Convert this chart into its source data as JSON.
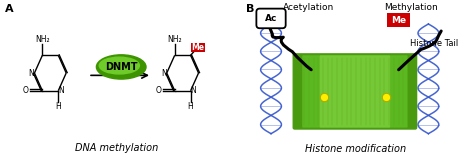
{
  "panel_A_label": "A",
  "panel_B_label": "B",
  "label_DNA_methylation": "DNA methylation",
  "label_Histone_modification": "Histone modification",
  "label_DNMT": "DNMT",
  "label_Me": "Me",
  "label_Ac": "Ac",
  "label_Acetylation": "Acetylation",
  "label_Methylation": "Methylation",
  "label_HistoneTail": "Histone Tail",
  "bg_color": "#ffffff",
  "dnmt_color_outer": "#3d9400",
  "dnmt_color_inner": "#6ecb2a",
  "me_color": "#cc0000",
  "bond_color": "#000000",
  "dna_color": "#3355cc",
  "histone_dark": "#4a9a10",
  "histone_mid": "#5cb820",
  "histone_light": "#80d040",
  "yellow_dot": "#ffee00",
  "fig_width": 4.74,
  "fig_height": 1.56
}
